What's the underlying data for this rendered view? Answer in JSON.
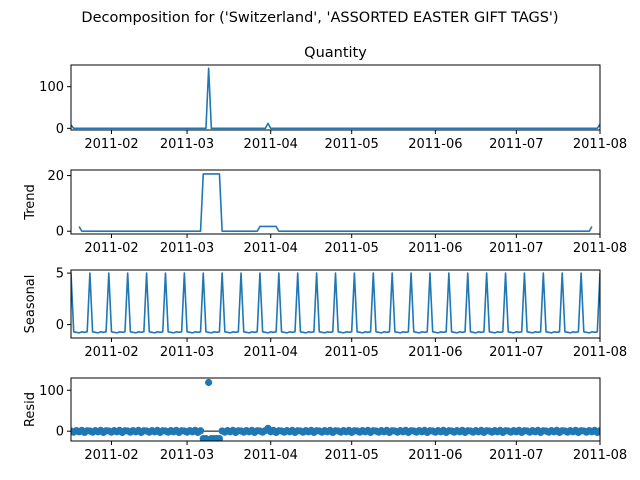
{
  "figure": {
    "suptitle": "Decomposition for ('Switzerland', 'ASSORTED EASTER GIFT TAGS')"
  },
  "colors": {
    "series": "#1f77b4",
    "axis": "#000000",
    "zero_line": "#000000"
  },
  "chart_data": [
    {
      "type": "line",
      "title": "Quantity",
      "ylabel": "",
      "x_range": [
        "2011-01-17",
        "2011-08-01"
      ],
      "ylim": [
        -4,
        152
      ],
      "yticks": [
        0,
        100
      ],
      "xtick_labels": [
        "2011-02",
        "2011-03",
        "2011-04",
        "2011-05",
        "2011-06",
        "2011-07",
        "2011-08"
      ],
      "points": [
        [
          "2011-01-17",
          8
        ],
        [
          "2011-01-18",
          0
        ],
        [
          "2011-03-08",
          0
        ],
        [
          "2011-03-09",
          144
        ],
        [
          "2011-03-10",
          0
        ],
        [
          "2011-03-30",
          0
        ],
        [
          "2011-03-31",
          12
        ],
        [
          "2011-04-01",
          0
        ],
        [
          "2011-07-31",
          0
        ],
        [
          "2011-08-01",
          10
        ]
      ]
    },
    {
      "type": "line",
      "title": "",
      "ylabel": "Trend",
      "x_range": [
        "2011-01-17",
        "2011-08-01"
      ],
      "ylim": [
        -1,
        22
      ],
      "yticks": [
        0,
        20
      ],
      "xtick_labels": [
        "2011-02",
        "2011-03",
        "2011-04",
        "2011-05",
        "2011-06",
        "2011-07",
        "2011-08"
      ],
      "points": [
        [
          "2011-01-20",
          1.7
        ],
        [
          "2011-01-21",
          0
        ],
        [
          "2011-03-06",
          0
        ],
        [
          "2011-03-07",
          20.6
        ],
        [
          "2011-03-13",
          20.6
        ],
        [
          "2011-03-14",
          0
        ],
        [
          "2011-03-27",
          0
        ],
        [
          "2011-03-28",
          1.7
        ],
        [
          "2011-04-03",
          1.7
        ],
        [
          "2011-04-04",
          0
        ],
        [
          "2011-07-28",
          0
        ],
        [
          "2011-07-29",
          1.7
        ]
      ]
    },
    {
      "type": "line",
      "title": "",
      "ylabel": "Seasonal",
      "x_range": [
        "2011-01-17",
        "2011-08-01"
      ],
      "ylim": [
        -1.3,
        5.3
      ],
      "yticks": [
        0,
        5
      ],
      "xtick_labels": [
        "2011-02",
        "2011-03",
        "2011-04",
        "2011-05",
        "2011-06",
        "2011-07",
        "2011-08"
      ],
      "period_days": 7,
      "peak_value": 5,
      "low_values": [
        -0.7,
        -0.75,
        -0.8,
        -0.7,
        -0.75,
        -0.7
      ],
      "peak_dates_start": "2011-01-24"
    },
    {
      "type": "scatter",
      "title": "",
      "ylabel": "Resid",
      "x_range": [
        "2011-01-17",
        "2011-08-01"
      ],
      "ylim": [
        -24,
        130
      ],
      "yticks": [
        0,
        100
      ],
      "xtick_labels": [
        "2011-02",
        "2011-03",
        "2011-04",
        "2011-05",
        "2011-06",
        "2011-07",
        "2011-08"
      ],
      "zero_line": true,
      "outliers": [
        [
          "2011-03-07",
          -18
        ],
        [
          "2011-03-08",
          -18
        ],
        [
          "2011-03-09",
          119
        ],
        [
          "2011-03-10",
          -18
        ],
        [
          "2011-03-11",
          -18
        ],
        [
          "2011-03-12",
          -18
        ],
        [
          "2011-03-13",
          -18
        ],
        [
          "2011-03-31",
          7
        ]
      ],
      "baseline_values": [
        0.5,
        -2.5,
        1.5,
        -1.5,
        2,
        -3,
        1
      ]
    }
  ]
}
